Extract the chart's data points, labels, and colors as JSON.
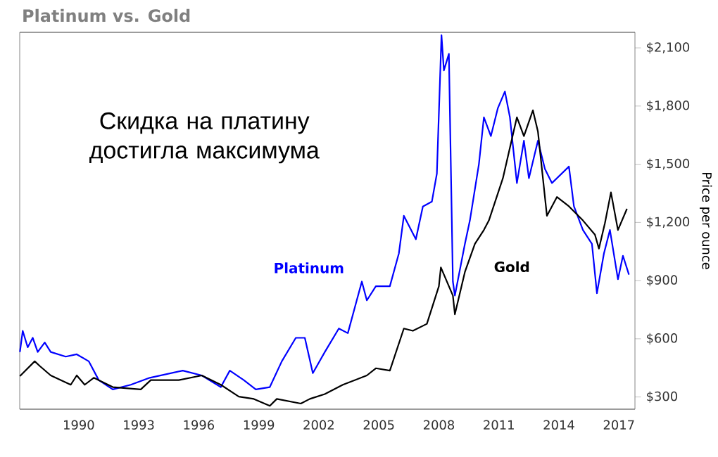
{
  "chart_data": {
    "type": "line",
    "title": "Platinum vs. Gold",
    "ylabel": "Price per ounce",
    "annotations": [
      "Скидка на платину достигла максимума"
    ],
    "xlim": [
      1987.05,
      2017.8
    ],
    "ylim": [
      237,
      2180
    ],
    "xticks": [
      1990,
      1993,
      1996,
      1999,
      2002,
      2005,
      2008,
      2011,
      2014,
      2017
    ],
    "yticks": [
      {
        "value": 300,
        "label": "$300"
      },
      {
        "value": 600,
        "label": "$600"
      },
      {
        "value": 900,
        "label": "$900"
      },
      {
        "value": 1200,
        "label": "$1,200"
      },
      {
        "value": 1500,
        "label": "$1,500"
      },
      {
        "value": 1800,
        "label": "$1,800"
      },
      {
        "value": 2100,
        "label": "$2,100"
      }
    ],
    "series": [
      {
        "name": "Platinum",
        "color": "#0000ff",
        "x": [
          1987.06,
          1987.2,
          1987.45,
          1987.7,
          1987.95,
          1988.3,
          1988.6,
          1989.35,
          1989.9,
          1990.5,
          1991.0,
          1991.7,
          1992.6,
          1993.55,
          1995.2,
          1996.15,
          1997.1,
          1997.55,
          1998.25,
          1998.85,
          1999.55,
          2000.15,
          2000.85,
          2001.3,
          2001.7,
          2002.3,
          2003.0,
          2003.45,
          2004.15,
          2004.4,
          2004.85,
          2005.55,
          2006.0,
          2006.25,
          2006.85,
          2007.2,
          2007.65,
          2007.9,
          2008.13,
          2008.25,
          2008.5,
          2008.7,
          2008.8,
          2009.3,
          2009.55,
          2010.0,
          2010.25,
          2010.6,
          2010.95,
          2011.3,
          2011.55,
          2011.9,
          2012.25,
          2012.5,
          2012.95,
          2013.3,
          2013.65,
          2014.5,
          2014.75,
          2015.2,
          2015.65,
          2015.9,
          2016.25,
          2016.55,
          2016.95,
          2017.2,
          2017.5
        ],
        "values": [
          532,
          641,
          556,
          605,
          532,
          581,
          532,
          508,
          520,
          484,
          387,
          339,
          363,
          399,
          436,
          411,
          351,
          436,
          387,
          339,
          351,
          484,
          605,
          605,
          423,
          532,
          653,
          629,
          895,
          798,
          871,
          871,
          1040,
          1234,
          1113,
          1282,
          1307,
          1452,
          2165,
          1984,
          2069,
          895,
          823,
          1089,
          1210,
          1500,
          1742,
          1645,
          1790,
          1875,
          1742,
          1403,
          1621,
          1428,
          1621,
          1476,
          1403,
          1488,
          1283,
          1161,
          1089,
          835,
          1040,
          1161,
          907,
          1028,
          931
        ]
      },
      {
        "name": "Gold",
        "color": "#000000",
        "x": [
          1987.06,
          1987.8,
          1988.05,
          1988.6,
          1989.6,
          1989.9,
          1990.3,
          1990.75,
          1991.7,
          1993.1,
          1993.6,
          1995.0,
          1996.15,
          1997.1,
          1998.0,
          1998.75,
          1999.55,
          1999.9,
          2001.1,
          2001.55,
          2002.3,
          2003.2,
          2004.4,
          2004.85,
          2005.55,
          2006.25,
          2006.7,
          2007.4,
          2008.0,
          2008.1,
          2008.7,
          2008.8,
          2009.3,
          2009.8,
          2010.25,
          2010.5,
          2011.2,
          2011.9,
          2012.25,
          2012.7,
          2012.95,
          2013.4,
          2013.9,
          2014.5,
          2015.2,
          2015.8,
          2016.0,
          2016.3,
          2016.6,
          2016.95,
          2017.4
        ],
        "values": [
          407,
          484,
          460,
          411,
          363,
          411,
          363,
          399,
          351,
          339,
          387,
          387,
          411,
          363,
          302,
          290,
          254,
          290,
          266,
          290,
          315,
          363,
          411,
          448,
          436,
          653,
          641,
          677,
          871,
          968,
          823,
          726,
          944,
          1089,
          1161,
          1210,
          1428,
          1742,
          1645,
          1778,
          1669,
          1234,
          1331,
          1283,
          1210,
          1137,
          1065,
          1197,
          1355,
          1161,
          1270
        ]
      }
    ]
  }
}
